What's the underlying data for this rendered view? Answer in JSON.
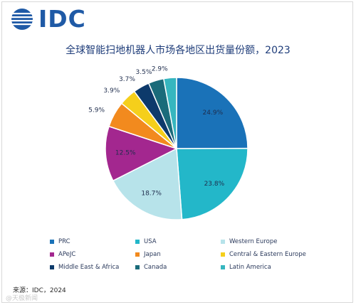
{
  "logo": {
    "text": "IDC",
    "color": "#1f5aa6"
  },
  "chart_data": {
    "type": "pie",
    "title": "全球智能扫地机器人市场各地区出货量份额，2023",
    "unit": "%",
    "legend_position": "bottom",
    "slices": [
      {
        "name": "PRC",
        "value": 24.9,
        "label": "24.9%",
        "color": "#1a72b8"
      },
      {
        "name": "USA",
        "value": 23.8,
        "label": "23.8%",
        "color": "#23b7c9"
      },
      {
        "name": "Western Europe",
        "value": 18.7,
        "label": "18.7%",
        "color": "#b7e3ea"
      },
      {
        "name": "APeJC",
        "value": 12.5,
        "label": "12.5%",
        "color": "#a3278f"
      },
      {
        "name": "Japan",
        "value": 5.9,
        "label": "5.9%",
        "color": "#f28a1e"
      },
      {
        "name": "Central & Eastern Europe",
        "value": 3.9,
        "label": "3.9%",
        "color": "#f5cf1b"
      },
      {
        "name": "Middle East & Africa",
        "value": 3.7,
        "label": "3.7%",
        "color": "#0d3a6b"
      },
      {
        "name": "Canada",
        "value": 3.5,
        "label": "3.5%",
        "color": "#1a6b7a"
      },
      {
        "name": "Latin America",
        "value": 2.9,
        "label": "2.9%",
        "color": "#36b6bf"
      }
    ]
  },
  "source": "来源：IDC，2024",
  "watermark": "@天极新闻"
}
